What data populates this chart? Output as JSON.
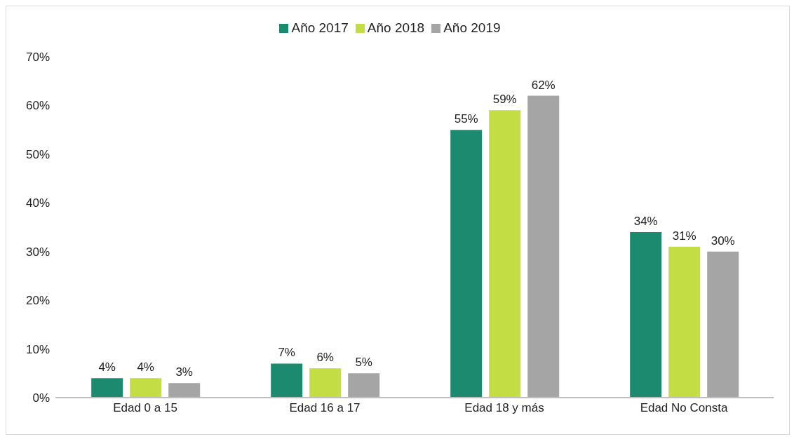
{
  "chart_data": {
    "type": "bar",
    "categories": [
      "Edad 0 a 15",
      "Edad 16 a 17",
      "Edad 18 y más",
      "Edad No Consta"
    ],
    "series": [
      {
        "name": "Año 2017",
        "color": "#1b8a6e",
        "values": [
          4,
          7,
          55,
          34
        ],
        "value_labels": [
          "4%",
          "7%",
          "55%",
          "34%"
        ]
      },
      {
        "name": "Año 2018",
        "color": "#c3dd45",
        "values": [
          4,
          6,
          59,
          31
        ],
        "value_labels": [
          "4%",
          "6%",
          "59%",
          "31%"
        ]
      },
      {
        "name": "Año 2019",
        "color": "#a5a5a5",
        "values": [
          3,
          5,
          62,
          30
        ],
        "value_labels": [
          "3%",
          "5%",
          "62%",
          "30%"
        ]
      }
    ],
    "ylim": [
      0,
      70
    ],
    "yticks": [
      {
        "value": 0,
        "label": "0%"
      },
      {
        "value": 10,
        "label": "10%"
      },
      {
        "value": 20,
        "label": "20%"
      },
      {
        "value": 30,
        "label": "30%"
      },
      {
        "value": 40,
        "label": "40%"
      },
      {
        "value": 50,
        "label": "50%"
      },
      {
        "value": 60,
        "label": "60%"
      },
      {
        "value": 70,
        "label": "70%"
      }
    ],
    "grid": false,
    "legend": "top"
  }
}
